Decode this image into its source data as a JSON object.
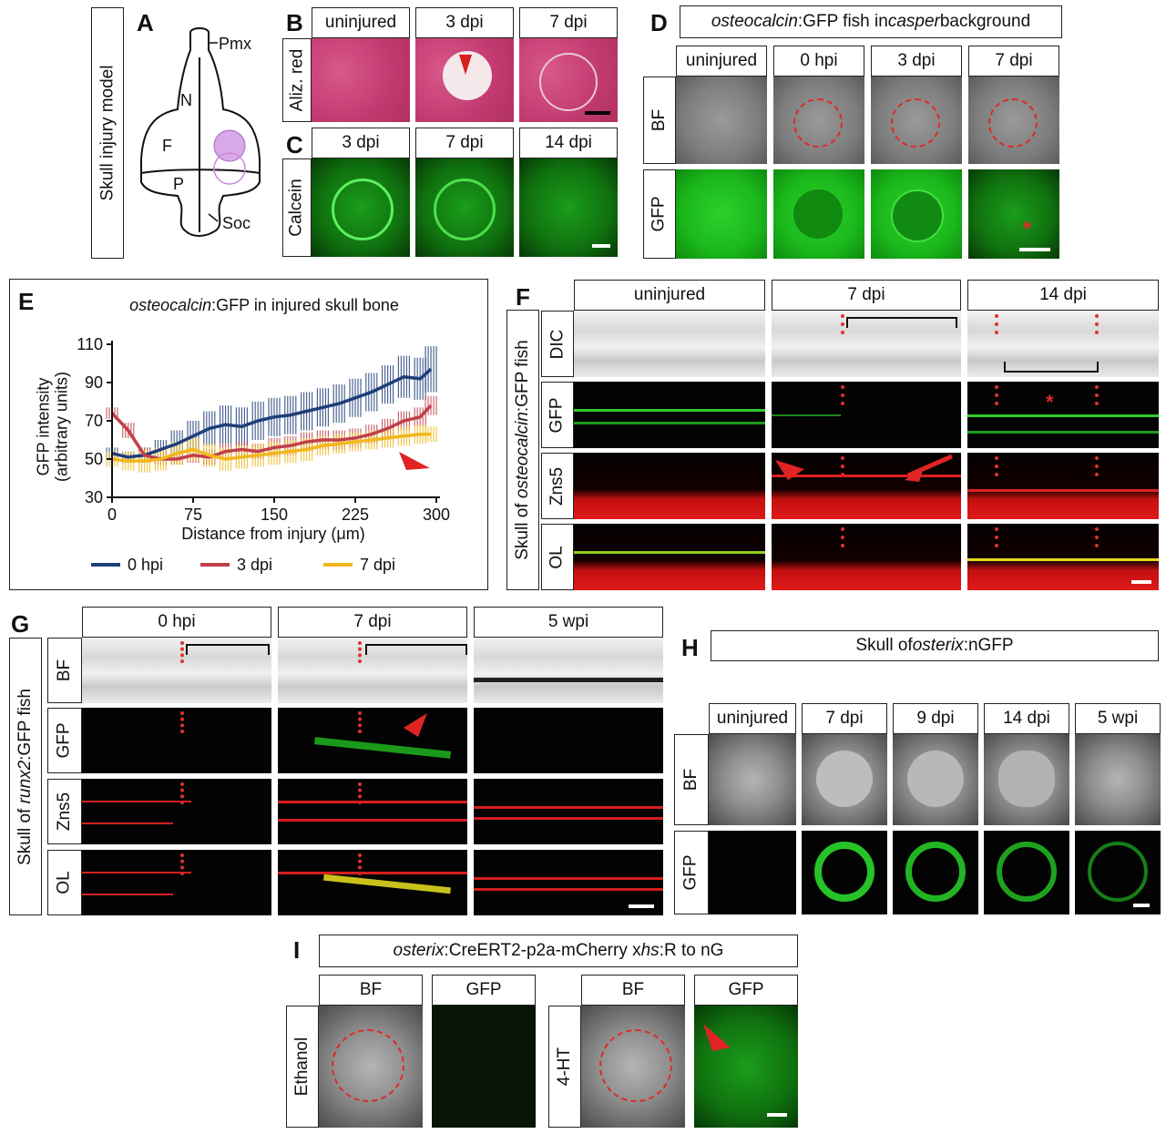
{
  "panels": {
    "A": {
      "letter": "A",
      "side_label": "Skull injury model",
      "regions": {
        "pmx": "Pmx",
        "n": "N",
        "f": "F",
        "p": "P",
        "soc": "Soc"
      }
    },
    "B": {
      "letter": "B",
      "row_label": "Aliz. red",
      "cols": [
        "uninjured",
        "3 dpi",
        "7 dpi"
      ]
    },
    "C": {
      "letter": "C",
      "row_label": "Calcein",
      "cols": [
        "3 dpi",
        "7 dpi",
        "14 dpi"
      ]
    },
    "D": {
      "letter": "D",
      "title_prefix": "osteocalcin",
      "title_suffix": ":GFP fish in ",
      "title_italic2": "casper",
      "title_end": " background",
      "cols": [
        "uninjured",
        "0 hpi",
        "3 dpi",
        "7 dpi"
      ],
      "rows": [
        "BF",
        "GFP"
      ],
      "asterisk": "*"
    },
    "E": {
      "letter": "E"
    },
    "F": {
      "letter": "F",
      "cols": [
        "uninjured",
        "7 dpi",
        "14 dpi"
      ],
      "rows": [
        "DIC",
        "GFP",
        "Zns5",
        "OL"
      ],
      "side_prefix": "Skull of ",
      "side_italic": "osteocalcin",
      "side_suffix": ":GFP fish",
      "asterisk": "*"
    },
    "G": {
      "letter": "G",
      "cols": [
        "0 hpi",
        "7 dpi",
        "5 wpi"
      ],
      "rows": [
        "BF",
        "GFP",
        "Zns5",
        "OL"
      ],
      "side_prefix": "Skull of ",
      "side_italic": "runx2",
      "side_suffix": ":GFP fish"
    },
    "H": {
      "letter": "H",
      "title": "Skull of ",
      "title_italic": "osterix",
      "title_suffix": ":nGFP",
      "cols": [
        "uninjured",
        "7 dpi",
        "9 dpi",
        "14 dpi",
        "5 wpi"
      ],
      "rows": [
        "BF",
        "GFP"
      ]
    },
    "I": {
      "letter": "I",
      "title_italic": "osterix",
      "title_mid": ":CreERT2-p2a-mCherry x ",
      "title_italic2": "hs",
      "title_end": ":R to nG",
      "cols": [
        "BF",
        "GFP",
        "BF",
        "GFP"
      ],
      "rows": [
        "Ethanol",
        "4-HT"
      ]
    }
  },
  "chart_data": {
    "type": "line",
    "title_italic": "osteocalcin",
    "title_rest": ":GFP in injured skull bone",
    "xlabel": "Distance from injury (μm)",
    "ylabel": "GFP intensity",
    "ylabel2": "(arbitrary units)",
    "xlim": [
      0,
      300
    ],
    "ylim": [
      30,
      110
    ],
    "xticks": [
      0,
      75,
      150,
      225,
      300
    ],
    "yticks": [
      30,
      50,
      70,
      90,
      110
    ],
    "x": [
      0,
      15,
      30,
      45,
      60,
      75,
      90,
      105,
      120,
      135,
      150,
      165,
      180,
      195,
      210,
      225,
      240,
      255,
      270,
      285,
      295
    ],
    "series": [
      {
        "name": "0 hpi",
        "color": "#1f3f7a",
        "values": [
          53,
          51,
          52,
          55,
          58,
          62,
          66,
          68,
          67,
          70,
          72,
          73,
          75,
          77,
          79,
          82,
          85,
          89,
          93,
          92,
          97
        ],
        "err": [
          3,
          3,
          4,
          5,
          7,
          8,
          9,
          10,
          10,
          10,
          10,
          10,
          10,
          10,
          10,
          10,
          10,
          10,
          11,
          11,
          12
        ]
      },
      {
        "name": "3 dpi",
        "color": "#c0404a",
        "values": [
          74,
          65,
          52,
          50,
          50,
          52,
          51,
          54,
          55,
          54,
          56,
          57,
          59,
          60,
          60,
          61,
          63,
          66,
          70,
          72,
          78
        ],
        "err": [
          3,
          4,
          4,
          3,
          3,
          4,
          4,
          4,
          4,
          4,
          5,
          5,
          5,
          5,
          5,
          5,
          5,
          5,
          5,
          5,
          5
        ]
      },
      {
        "name": "7 dpi",
        "color": "#f1b81c",
        "values": [
          50,
          49,
          49,
          50,
          53,
          55,
          52,
          50,
          51,
          52,
          53,
          54,
          55,
          57,
          58,
          59,
          60,
          61,
          62,
          63,
          63
        ],
        "err": [
          4,
          5,
          6,
          6,
          6,
          6,
          6,
          6,
          6,
          6,
          6,
          6,
          6,
          5,
          5,
          5,
          5,
          5,
          5,
          5,
          4
        ]
      }
    ]
  }
}
